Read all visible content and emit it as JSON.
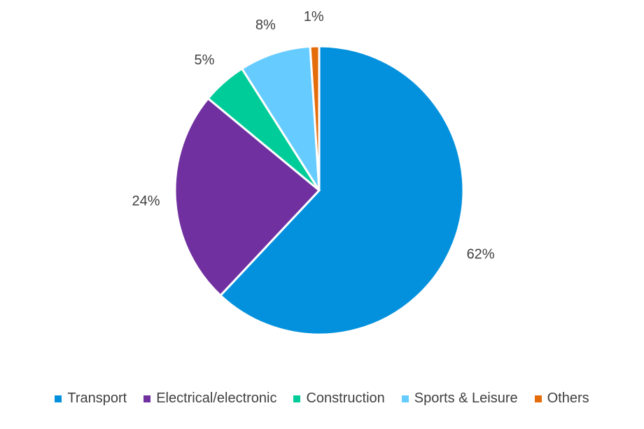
{
  "chart_data": {
    "type": "pie",
    "categories": [
      "Transport",
      "Electrical/electronic",
      "Construction",
      "Sports & Leisure",
      "Others"
    ],
    "values": [
      62,
      24,
      5,
      8,
      1
    ],
    "labels": [
      "62%",
      "24%",
      "5%",
      "8%",
      "1%"
    ],
    "colors": [
      "#0391DD",
      "#7030A0",
      "#00CC99",
      "#66CCFF",
      "#E46C0A"
    ],
    "start_angle_deg": 0,
    "direction": "clockwise",
    "legend_position": "bottom",
    "title": ""
  }
}
